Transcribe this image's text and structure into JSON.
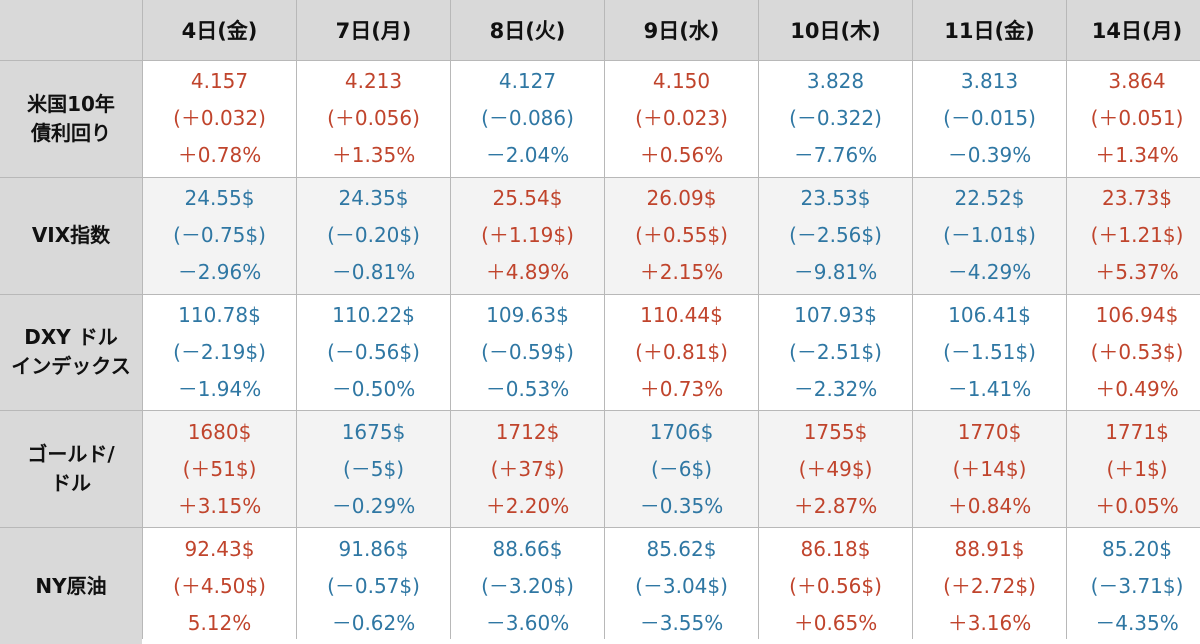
{
  "headers": [
    "4日(金)",
    "7日(月)",
    "8日(火)",
    "9日(水)",
    "10日(木)",
    "11日(金)",
    "14日(月)"
  ],
  "rows": [
    {
      "label_lines": [
        "米国10年",
        "債利回り"
      ],
      "cells": [
        {
          "value": "4.157",
          "change": "(＋0.032)",
          "pct": "＋0.78%",
          "dir": "up"
        },
        {
          "value": "4.213",
          "change": "(＋0.056)",
          "pct": "＋1.35%",
          "dir": "up"
        },
        {
          "value": "4.127",
          "change": "(－0.086)",
          "pct": "－2.04%",
          "dir": "down"
        },
        {
          "value": "4.150",
          "change": "(＋0.023)",
          "pct": "＋0.56%",
          "dir": "up"
        },
        {
          "value": "3.828",
          "change": "(－0.322)",
          "pct": "－7.76%",
          "dir": "down"
        },
        {
          "value": "3.813",
          "change": "(－0.015)",
          "pct": "－0.39%",
          "dir": "down"
        },
        {
          "value": "3.864",
          "change": "(＋0.051)",
          "pct": "＋1.34%",
          "dir": "up"
        }
      ]
    },
    {
      "label_lines": [
        "VIX指数"
      ],
      "cells": [
        {
          "value": "24.55$",
          "change": "(－0.75$)",
          "pct": "－2.96%",
          "dir": "down"
        },
        {
          "value": "24.35$",
          "change": "(－0.20$)",
          "pct": "－0.81%",
          "dir": "down"
        },
        {
          "value": "25.54$",
          "change": "(＋1.19$)",
          "pct": "＋4.89%",
          "dir": "up"
        },
        {
          "value": "26.09$",
          "change": "(＋0.55$)",
          "pct": "＋2.15%",
          "dir": "up"
        },
        {
          "value": "23.53$",
          "change": "(－2.56$)",
          "pct": "－9.81%",
          "dir": "down"
        },
        {
          "value": "22.52$",
          "change": "(－1.01$)",
          "pct": "－4.29%",
          "dir": "down"
        },
        {
          "value": "23.73$",
          "change": "(＋1.21$)",
          "pct": "＋5.37%",
          "dir": "up"
        }
      ]
    },
    {
      "label_lines": [
        "DXY ドル",
        "インデックス"
      ],
      "cells": [
        {
          "value": "110.78$",
          "change": "(－2.19$)",
          "pct": "－1.94%",
          "dir": "down"
        },
        {
          "value": "110.22$",
          "change": "(－0.56$)",
          "pct": "－0.50%",
          "dir": "down"
        },
        {
          "value": "109.63$",
          "change": "(－0.59$)",
          "pct": "－0.53%",
          "dir": "down"
        },
        {
          "value": "110.44$",
          "change": "(＋0.81$)",
          "pct": "＋0.73%",
          "dir": "up"
        },
        {
          "value": "107.93$",
          "change": "(－2.51$)",
          "pct": "－2.32%",
          "dir": "down"
        },
        {
          "value": "106.41$",
          "change": "(－1.51$)",
          "pct": "－1.41%",
          "dir": "down"
        },
        {
          "value": "106.94$",
          "change": "(＋0.53$)",
          "pct": "＋0.49%",
          "dir": "up"
        }
      ]
    },
    {
      "label_lines": [
        "ゴールド/",
        "ドル"
      ],
      "cells": [
        {
          "value": "1680$",
          "change": "(＋51$)",
          "pct": "＋3.15%",
          "dir": "up"
        },
        {
          "value": "1675$",
          "change": "(－5$)",
          "pct": "－0.29%",
          "dir": "down"
        },
        {
          "value": "1712$",
          "change": "(＋37$)",
          "pct": "＋2.20%",
          "dir": "up"
        },
        {
          "value": "1706$",
          "change": "(－6$)",
          "pct": "－0.35%",
          "dir": "down"
        },
        {
          "value": "1755$",
          "change": "(＋49$)",
          "pct": "＋2.87%",
          "dir": "up"
        },
        {
          "value": "1770$",
          "change": "(＋14$)",
          "pct": "＋0.84%",
          "dir": "up"
        },
        {
          "value": "1771$",
          "change": "(＋1$)",
          "pct": "＋0.05%",
          "dir": "up"
        }
      ]
    },
    {
      "label_lines": [
        "NY原油"
      ],
      "cells": [
        {
          "value": "92.43$",
          "change": "(＋4.50$)",
          "pct": "5.12%",
          "dir": "up"
        },
        {
          "value": "91.86$",
          "change": "(－0.57$)",
          "pct": "－0.62%",
          "dir": "down"
        },
        {
          "value": "88.66$",
          "change": "(－3.20$)",
          "pct": "－3.60%",
          "dir": "down"
        },
        {
          "value": "85.62$",
          "change": "(－3.04$)",
          "pct": "－3.55%",
          "dir": "down"
        },
        {
          "value": "86.18$",
          "change": "(＋0.56$)",
          "pct": "＋0.65%",
          "dir": "up"
        },
        {
          "value": "88.91$",
          "change": "(＋2.72$)",
          "pct": "＋3.16%",
          "dir": "up"
        },
        {
          "value": "85.20$",
          "change": "(－3.71$)",
          "pct": "－4.35%",
          "dir": "down"
        }
      ]
    }
  ],
  "colors": {
    "up": "#c0442c",
    "down": "#2f77a3",
    "header_bg": "#d9d9d9",
    "alt_row_bg": "#f3f3f3"
  }
}
